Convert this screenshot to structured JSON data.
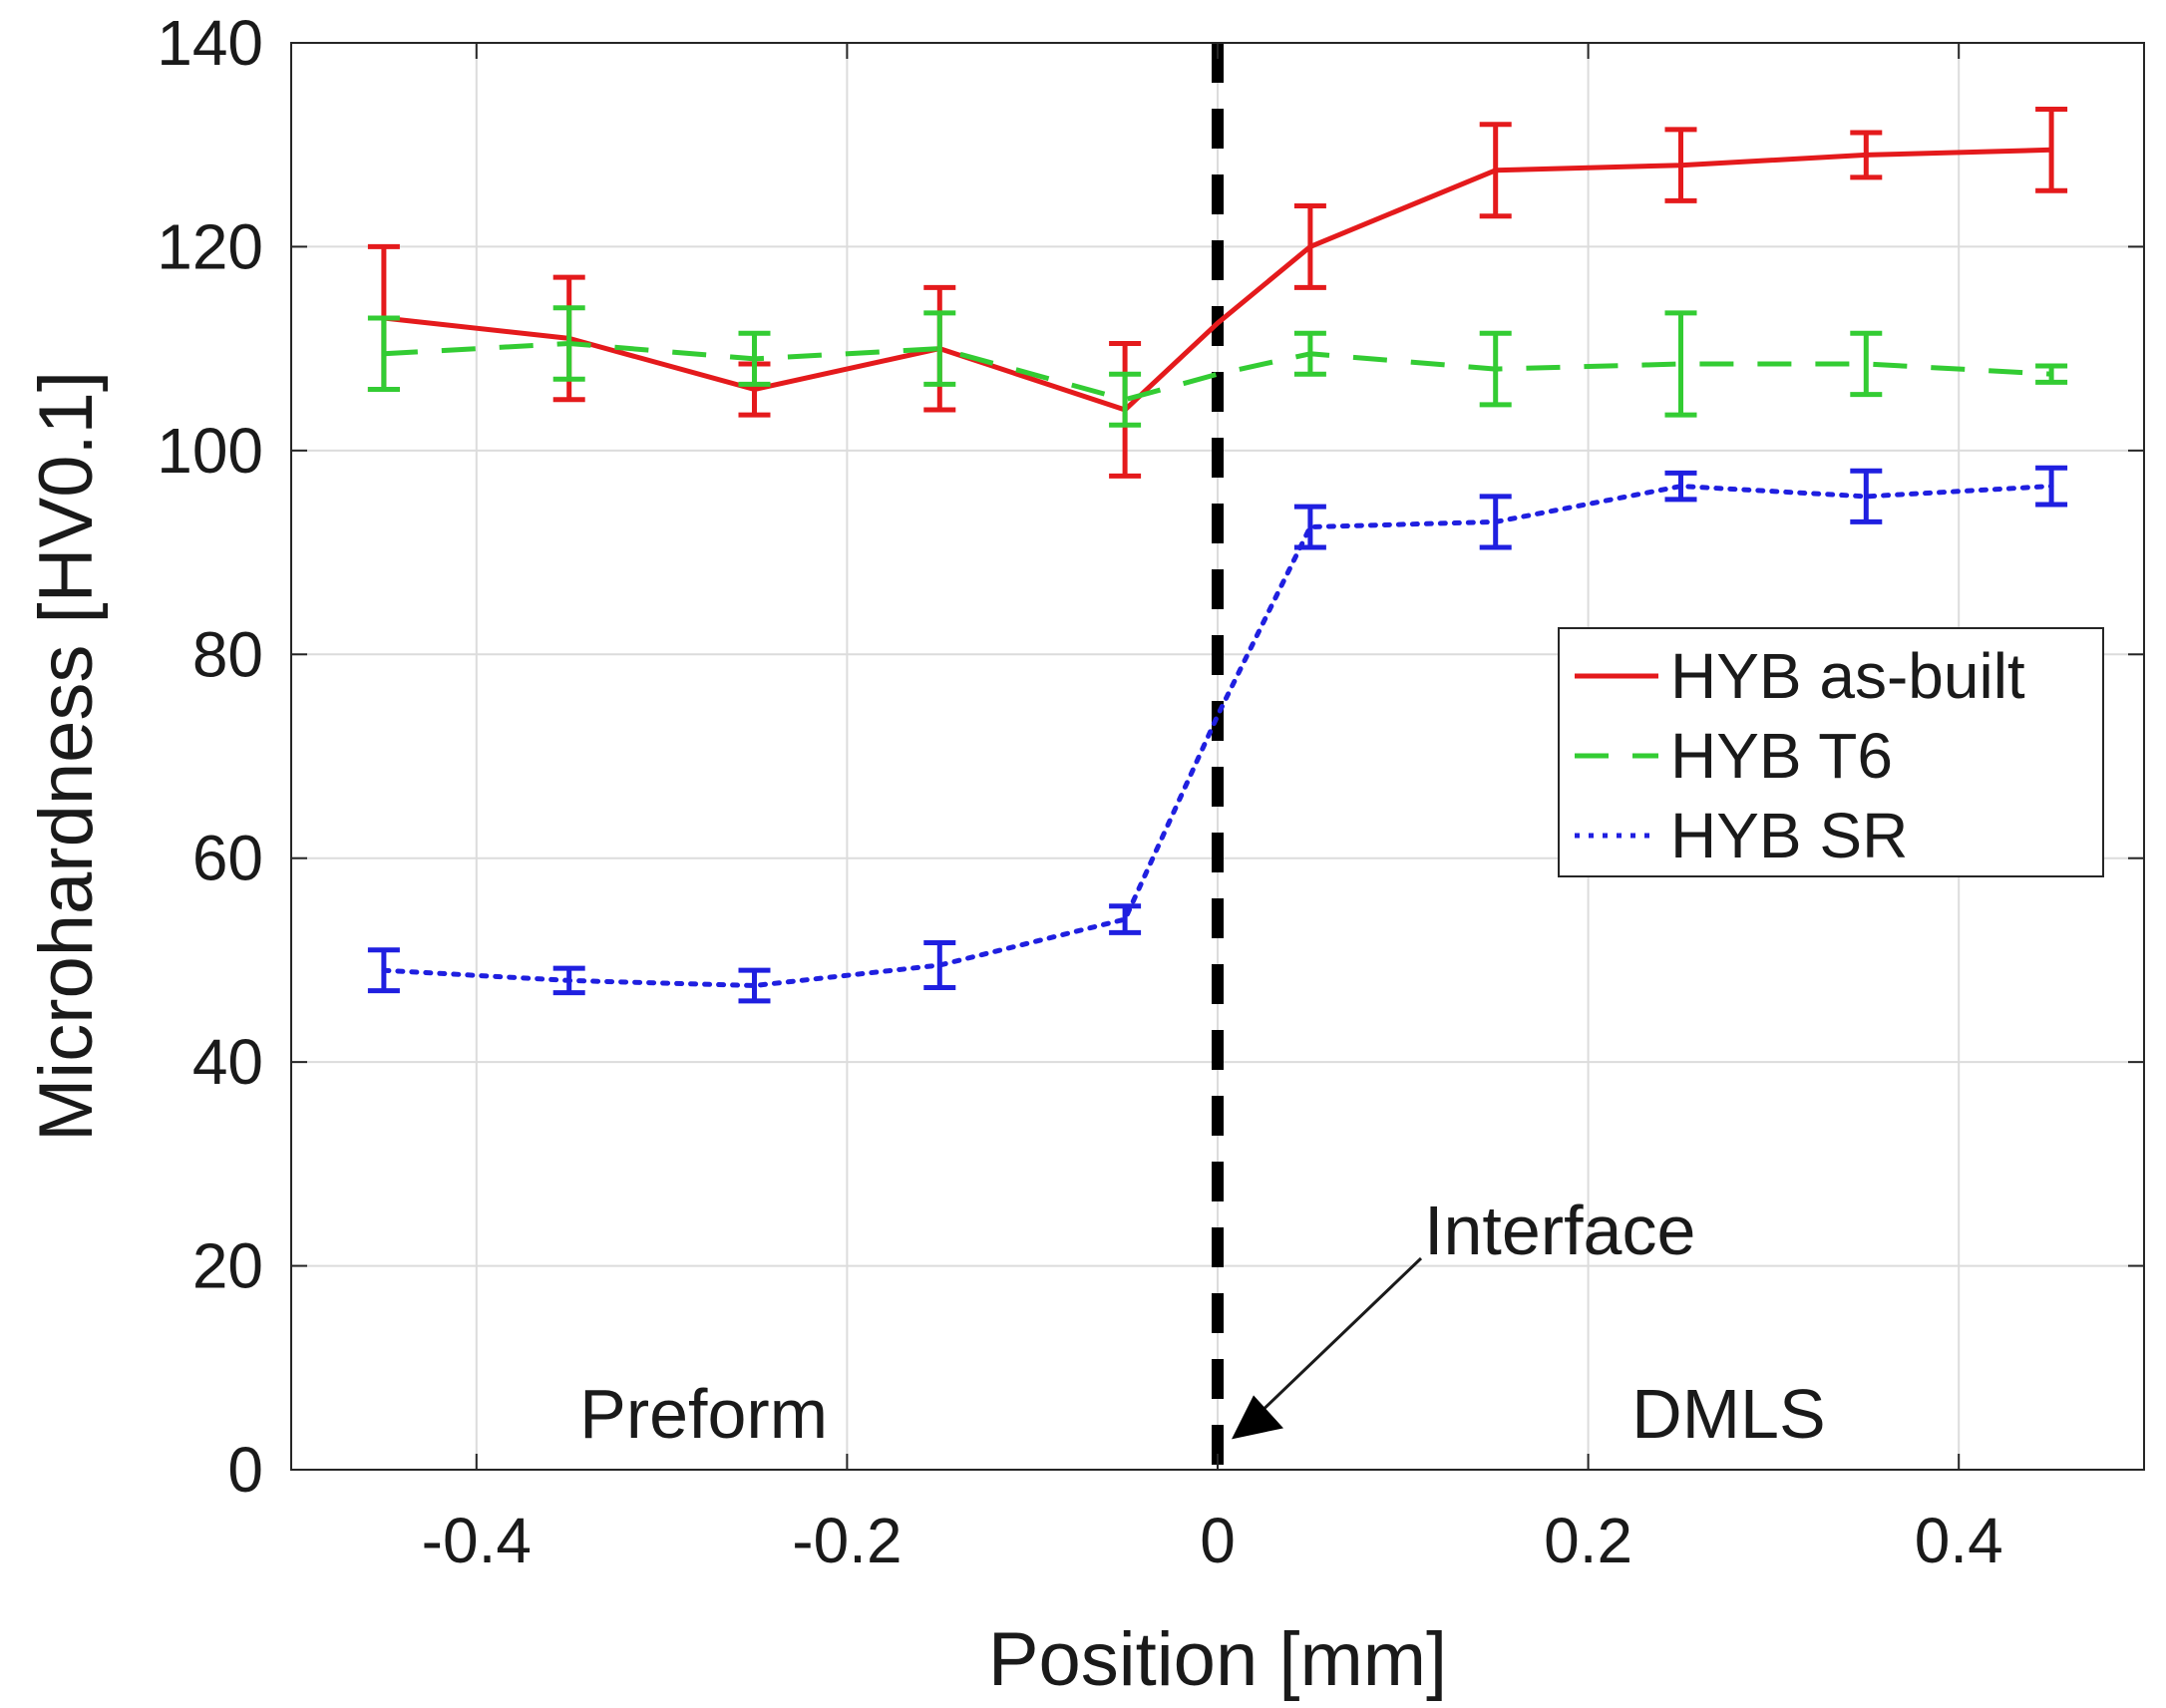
{
  "chart_data": {
    "type": "line",
    "title": "",
    "xlabel": "Position [mm]",
    "ylabel": "Microhardness [HV0.1]",
    "xlim": [
      -0.5,
      0.5
    ],
    "ylim": [
      0,
      140
    ],
    "xticks": [
      -0.4,
      -0.2,
      0,
      0.2,
      0.4
    ],
    "xtick_labels": [
      "-0.4",
      "-0.2",
      "0",
      "0.2",
      "0.4"
    ],
    "yticks": [
      0,
      20,
      40,
      60,
      80,
      100,
      120,
      140
    ],
    "ytick_labels": [
      "0",
      "20",
      "40",
      "60",
      "80",
      "100",
      "120",
      "140"
    ],
    "grid": true,
    "legend_position": "right-middle",
    "x": [
      -0.45,
      -0.35,
      -0.25,
      -0.15,
      -0.05,
      0.05,
      0.15,
      0.25,
      0.35,
      0.45
    ],
    "series": [
      {
        "name": "HYB as-built",
        "color": "#e41a1c",
        "style": "solid",
        "values": [
          113,
          111,
          106,
          110,
          104,
          120,
          127.5,
          128,
          129,
          129.5
        ],
        "errors": [
          7,
          6,
          2.5,
          6,
          6.5,
          4,
          4.5,
          3.5,
          2.2,
          4
        ]
      },
      {
        "name": "HYB T6",
        "color": "#33cc33",
        "style": "dashed",
        "values": [
          109.5,
          110.5,
          109,
          110,
          105,
          109.5,
          108,
          108.5,
          108.5,
          107.5
        ],
        "errors": [
          3.5,
          3.5,
          2.5,
          3.5,
          2.5,
          2,
          3.5,
          5,
          3,
          0.8
        ]
      },
      {
        "name": "HYB SR",
        "color": "#1f1fe0",
        "style": "dotted",
        "values": [
          49,
          48,
          47.5,
          49.5,
          54,
          92.5,
          93,
          96.5,
          95.5,
          96.5
        ],
        "errors": [
          2,
          1.2,
          1.5,
          2.2,
          1.3,
          2,
          2.5,
          1.3,
          2.5,
          1.8
        ]
      }
    ],
    "connections_at_interface": {
      "HYB as-built": 112.5,
      "HYB T6": 107.5,
      "HYB SR": 74
    },
    "interface_line_x": 0,
    "annotations": [
      {
        "text": "Interface",
        "target_x": 0,
        "target_y": 3
      },
      {
        "text": "Preform",
        "anchor_x": -0.3,
        "anchor_y": 6
      },
      {
        "text": "DMLS",
        "anchor_x": 0.3,
        "anchor_y": 6
      }
    ]
  }
}
